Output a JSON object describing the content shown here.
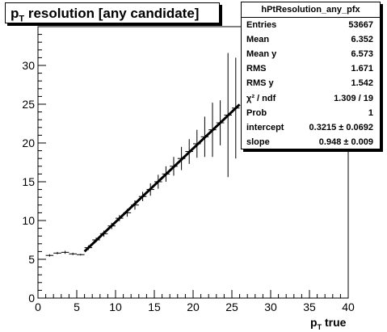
{
  "chart_data": {
    "type": "scatter",
    "title": "resolution [any candidate]",
    "title_prefix": "p",
    "title_sub": "T",
    "xlabel": "true",
    "xlabel_prefix": "p",
    "xlabel_sub": "T",
    "ylabel": "",
    "xlim": [
      0,
      40
    ],
    "ylim": [
      0,
      35
    ],
    "xticks": [
      0,
      5,
      10,
      15,
      20,
      25,
      30,
      35,
      40
    ],
    "yticks": [
      0,
      5,
      10,
      15,
      20,
      25,
      30
    ],
    "grid": false,
    "series": [
      {
        "x": [
          1.5,
          2.5,
          3.5,
          4.5,
          5.5,
          6.5,
          7.5,
          8.5,
          9.5,
          10.5,
          11.5,
          12.5,
          13.5,
          14.5,
          15.5,
          16.5,
          17.5,
          18.5,
          19.5,
          20.5,
          21.5,
          22.5,
          23.5,
          24.5,
          25.5
        ],
        "y": [
          5.5,
          5.8,
          5.9,
          5.7,
          5.6,
          6.5,
          7.5,
          8.3,
          9.3,
          10.3,
          11.0,
          12.0,
          13.1,
          14.0,
          15.0,
          16.0,
          17.0,
          18.0,
          18.9,
          19.9,
          20.8,
          21.7,
          22.6,
          23.6,
          24.5
        ],
        "yerr": [
          0.15,
          0.15,
          0.2,
          0.15,
          0.1,
          0.3,
          0.3,
          0.4,
          0.4,
          0.4,
          0.5,
          0.6,
          0.6,
          0.8,
          0.9,
          1.0,
          1.2,
          1.5,
          1.6,
          1.8,
          2.6,
          3.5,
          2.9,
          8.0,
          6.5
        ]
      }
    ],
    "fit": {
      "intercept": 0.3215,
      "slope": 0.948,
      "x_range": [
        6,
        26
      ]
    }
  },
  "stats": {
    "title": "hPtResolution_any_pfx",
    "rows": [
      {
        "label": "Entries",
        "value": "53667"
      },
      {
        "label": "Mean",
        "value": "6.352"
      },
      {
        "label": "Mean y",
        "value": "6.573"
      },
      {
        "label": "RMS",
        "value": "1.671"
      },
      {
        "label": "RMS y",
        "value": "1.542"
      },
      {
        "label": "χ² / ndf",
        "value": "1.309 / 19"
      },
      {
        "label": "Prob",
        "value": "1"
      },
      {
        "label": "intercept",
        "value": "0.3215 ± 0.0692"
      },
      {
        "label": "slope",
        "value": "0.948 ± 0.009"
      }
    ]
  }
}
